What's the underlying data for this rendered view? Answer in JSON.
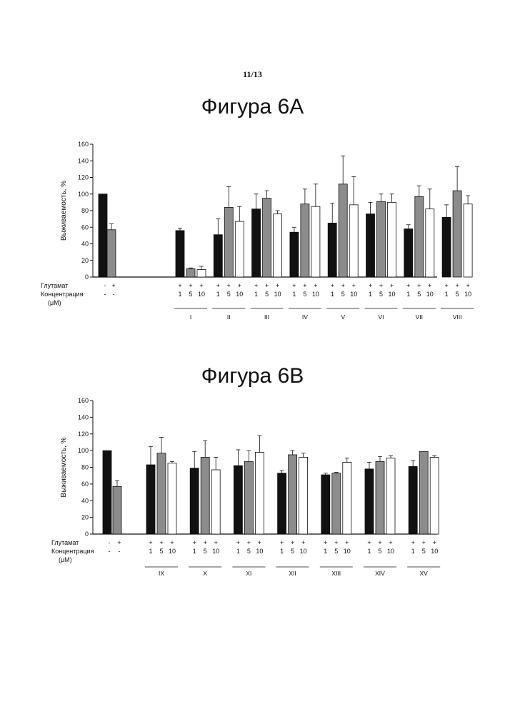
{
  "page_number": "11/13",
  "chart_data": [
    {
      "type": "bar",
      "title": "Фигура 6A",
      "ylabel": "Выживаемость, %",
      "ylim": [
        0,
        160
      ],
      "yticks": [
        0,
        20,
        40,
        60,
        80,
        100,
        120,
        140,
        160
      ],
      "row_labels": {
        "glutamate": "Глутамат",
        "concentration": "Концентрация",
        "unit": "(μM)"
      },
      "series": [
        {
          "name": "1",
          "color": "#111111"
        },
        {
          "name": "5",
          "color": "#8c8c8c"
        },
        {
          "name": "10",
          "color": "#ffffff"
        }
      ],
      "controls": [
        {
          "glutamate": "-",
          "concentration": "-",
          "value": 100,
          "error": 0,
          "color": "#111111"
        },
        {
          "glutamate": "+",
          "concentration": "-",
          "value": 57,
          "error": 7,
          "color": "#8c8c8c"
        }
      ],
      "groups": [
        {
          "label": "I",
          "signs": [
            "+",
            "+",
            "+"
          ],
          "conc": [
            "1",
            "5",
            "10"
          ],
          "values": [
            56,
            10,
            9
          ],
          "errors": [
            3,
            1,
            4
          ]
        },
        {
          "label": "II",
          "signs": [
            "+",
            "+",
            "+"
          ],
          "conc": [
            "1",
            "5",
            "10"
          ],
          "values": [
            51,
            84,
            67
          ],
          "errors": [
            19,
            25,
            18
          ]
        },
        {
          "label": "III",
          "signs": [
            "+",
            "+",
            "+"
          ],
          "conc": [
            "1",
            "5",
            "10"
          ],
          "values": [
            82,
            95,
            76
          ],
          "errors": [
            18,
            9,
            4
          ]
        },
        {
          "label": "IV",
          "signs": [
            "+",
            "+",
            "+"
          ],
          "conc": [
            "1",
            "5",
            "10"
          ],
          "values": [
            54,
            88,
            85
          ],
          "errors": [
            6,
            18,
            27
          ]
        },
        {
          "label": "V",
          "signs": [
            "+",
            "+",
            "+"
          ],
          "conc": [
            "1",
            "5",
            "10"
          ],
          "values": [
            65,
            112,
            87
          ],
          "errors": [
            24,
            34,
            34
          ]
        },
        {
          "label": "VI",
          "signs": [
            "+",
            "+",
            "+"
          ],
          "conc": [
            "1",
            "5",
            "10"
          ],
          "values": [
            76,
            91,
            90
          ],
          "errors": [
            14,
            9,
            10
          ]
        },
        {
          "label": "VII",
          "signs": [
            "+",
            "+",
            "+"
          ],
          "conc": [
            "1",
            "5",
            "10"
          ],
          "values": [
            58,
            97,
            82
          ],
          "errors": [
            5,
            13,
            24
          ]
        },
        {
          "label": "VIII",
          "signs": [
            "+",
            "+",
            "+"
          ],
          "conc": [
            "1",
            "5",
            "10"
          ],
          "values": [
            72,
            104,
            88
          ],
          "errors": [
            15,
            29,
            10
          ]
        }
      ]
    },
    {
      "type": "bar",
      "title": "Фигура 6B",
      "ylabel": "Выживаемость, %",
      "ylim": [
        0,
        160
      ],
      "yticks": [
        0,
        20,
        40,
        60,
        80,
        100,
        120,
        140,
        160
      ],
      "row_labels": {
        "glutamate": "Глутамат",
        "concentration": "Концентрация",
        "unit": "(μM)"
      },
      "series": [
        {
          "name": "1",
          "color": "#111111"
        },
        {
          "name": "5",
          "color": "#8c8c8c"
        },
        {
          "name": "10",
          "color": "#ffffff"
        }
      ],
      "controls": [
        {
          "glutamate": "-",
          "concentration": "-",
          "value": 100,
          "error": 0,
          "color": "#111111"
        },
        {
          "glutamate": "+",
          "concentration": "-",
          "value": 57,
          "error": 7,
          "color": "#8c8c8c"
        }
      ],
      "groups": [
        {
          "label": "IX",
          "signs": [
            "+",
            "+",
            "+"
          ],
          "conc": [
            "1",
            "5",
            "10"
          ],
          "values": [
            83,
            97,
            85
          ],
          "errors": [
            22,
            19,
            2
          ]
        },
        {
          "label": "X",
          "signs": [
            "+",
            "+",
            "+"
          ],
          "conc": [
            "1",
            "5",
            "10"
          ],
          "values": [
            79,
            92,
            77
          ],
          "errors": [
            20,
            20,
            15
          ]
        },
        {
          "label": "XI",
          "signs": [
            "+",
            "+",
            "+"
          ],
          "conc": [
            "1",
            "5",
            "10"
          ],
          "values": [
            82,
            87,
            98
          ],
          "errors": [
            19,
            13,
            20
          ]
        },
        {
          "label": "XII",
          "signs": [
            "+",
            "+",
            "+"
          ],
          "conc": [
            "1",
            "5",
            "10"
          ],
          "values": [
            73,
            95,
            92
          ],
          "errors": [
            3,
            5,
            5
          ]
        },
        {
          "label": "XIII",
          "signs": [
            "+",
            "+",
            "+"
          ],
          "conc": [
            "1",
            "5",
            "10"
          ],
          "values": [
            71,
            73,
            86
          ],
          "errors": [
            2,
            1,
            5
          ]
        },
        {
          "label": "XIV",
          "signs": [
            "+",
            "+",
            "+"
          ],
          "conc": [
            "1",
            "5",
            "10"
          ],
          "values": [
            78,
            87,
            91
          ],
          "errors": [
            8,
            6,
            3
          ]
        },
        {
          "label": "XV",
          "signs": [
            "+",
            "+",
            "+"
          ],
          "conc": [
            "1",
            "5",
            "10"
          ],
          "values": [
            81,
            99,
            92
          ],
          "errors": [
            7,
            0,
            2
          ]
        }
      ]
    }
  ]
}
